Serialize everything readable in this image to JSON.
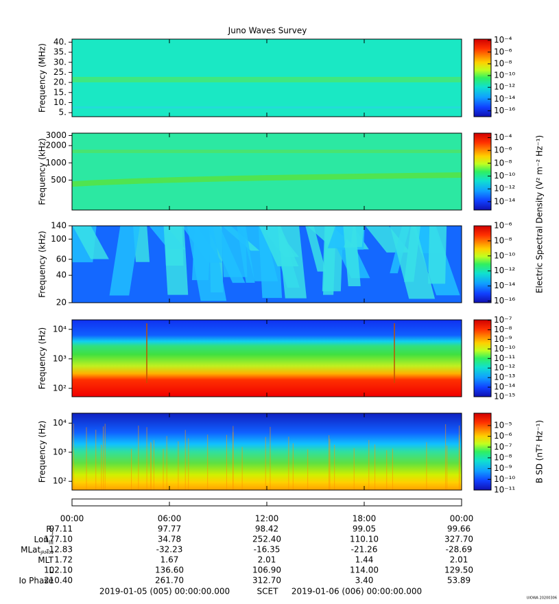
{
  "chart_data": [
    {
      "type": "spectrogram",
      "title": "Juno Waves Survey",
      "ylabel": "Frequency (MHz)",
      "yscale": "linear",
      "ylim": [
        3,
        41.5
      ],
      "yticks": [
        {
          "value": 40,
          "label": "40."
        },
        {
          "value": 35,
          "label": "35."
        },
        {
          "value": 30,
          "label": "30."
        },
        {
          "value": 25,
          "label": "25."
        },
        {
          "value": 20,
          "label": "20."
        },
        {
          "value": 15,
          "label": "15."
        },
        {
          "value": 10,
          "label": "10."
        },
        {
          "value": 5,
          "label": "5."
        }
      ],
      "clim": [
        1e-17,
        0.00016
      ],
      "cticks": [
        {
          "value": 0.0001,
          "label": "10⁻⁴"
        },
        {
          "value": 1e-06,
          "label": "10⁻⁶"
        },
        {
          "value": 1e-08,
          "label": "10⁻⁸"
        },
        {
          "value": 1e-10,
          "label": "10⁻¹⁰"
        },
        {
          "value": 1e-12,
          "label": "10⁻¹²"
        },
        {
          "value": 1e-14,
          "label": "10⁻¹⁴"
        },
        {
          "value": 1e-16,
          "label": "10⁻¹⁶"
        }
      ]
    },
    {
      "type": "spectrogram",
      "ylabel": "Frequency (kHz)",
      "yscale": "log",
      "ylim": [
        150,
        3300
      ],
      "yticks": [
        3000,
        2000,
        1000,
        500
      ],
      "clim": [
        5e-16,
        0.0005
      ],
      "cticks": [
        {
          "value": 0.0001,
          "label": "10⁻⁴"
        },
        {
          "value": 1e-06,
          "label": "10⁻⁶"
        },
        {
          "value": 1e-08,
          "label": "10⁻⁸"
        },
        {
          "value": 1e-10,
          "label": "10⁻¹⁰"
        },
        {
          "value": 1e-12,
          "label": "10⁻¹²"
        },
        {
          "value": 1e-14,
          "label": "10⁻¹⁴"
        }
      ]
    },
    {
      "type": "spectrogram",
      "ylabel": "Frequency (kHz)",
      "yscale": "log",
      "ylim": [
        20,
        140
      ],
      "yticks": [
        140,
        100,
        60,
        40,
        20
      ],
      "clim": [
        6e-17,
        1e-06
      ],
      "clabel": "Electric Spectral Density (V² m⁻² Hz⁻¹)",
      "cticks": [
        {
          "value": 1e-06,
          "label": "10⁻⁶"
        },
        {
          "value": 1e-08,
          "label": "10⁻⁸"
        },
        {
          "value": 1e-10,
          "label": "10⁻¹⁰"
        },
        {
          "value": 1e-12,
          "label": "10⁻¹²"
        },
        {
          "value": 1e-14,
          "label": "10⁻¹⁴"
        },
        {
          "value": 1e-16,
          "label": "10⁻¹⁶"
        }
      ]
    },
    {
      "type": "spectrogram",
      "ylabel": "Frequency (Hz)",
      "yscale": "log",
      "ylim": [
        52,
        21000
      ],
      "yticks": [
        {
          "value": 10000,
          "label": "10⁴"
        },
        {
          "value": 1000,
          "label": "10³"
        },
        {
          "value": 100,
          "label": "10²"
        }
      ],
      "clim": [
        1e-15,
        1.1e-07
      ],
      "cticks": [
        {
          "value": 1e-07,
          "label": "10⁻⁷"
        },
        {
          "value": 1e-08,
          "label": "10⁻⁸"
        },
        {
          "value": 1e-09,
          "label": "10⁻⁹"
        },
        {
          "value": 1e-10,
          "label": "10⁻¹⁰"
        },
        {
          "value": 1e-11,
          "label": "10⁻¹¹"
        },
        {
          "value": 1e-12,
          "label": "10⁻¹²"
        },
        {
          "value": 1e-13,
          "label": "10⁻¹³"
        },
        {
          "value": 1e-14,
          "label": "10⁻¹⁴"
        },
        {
          "value": 1e-15,
          "label": "10⁻¹⁵"
        }
      ]
    },
    {
      "type": "spectrogram",
      "ylabel": "Frequency (Hz)",
      "yscale": "log",
      "ylim": [
        50,
        22000
      ],
      "yticks": [
        {
          "value": 10000,
          "label": "10⁴"
        },
        {
          "value": 1000,
          "label": "10³"
        },
        {
          "value": 100,
          "label": "10²"
        }
      ],
      "clim": [
        1e-11,
        0.00014
      ],
      "clabel": "B SD (nT² Hz⁻¹)",
      "cticks": [
        {
          "value": 1e-05,
          "label": "10⁻⁵"
        },
        {
          "value": 1e-06,
          "label": "10⁻⁶"
        },
        {
          "value": 1e-07,
          "label": "10⁻⁷"
        },
        {
          "value": 1e-08,
          "label": "10⁻⁸"
        },
        {
          "value": 1e-09,
          "label": "10⁻⁹"
        },
        {
          "value": 1e-10,
          "label": "10⁻¹⁰"
        },
        {
          "value": 1e-11,
          "label": "10⁻¹¹"
        }
      ]
    }
  ],
  "time_axis": {
    "xlim": [
      0,
      24
    ],
    "xticks": [
      {
        "value": 0,
        "label": "00:00"
      },
      {
        "value": 6,
        "label": "06:00"
      },
      {
        "value": 12,
        "label": "12:00"
      },
      {
        "value": 18,
        "label": "18:00"
      },
      {
        "value": 24,
        "label": "00:00"
      }
    ]
  },
  "ephemeris": {
    "rows": [
      {
        "label": "R",
        "sub": "J",
        "values": [
          "97.11",
          "97.77",
          "98.42",
          "99.05",
          "99.66"
        ]
      },
      {
        "label": "Lon",
        "sub": "III",
        "values": [
          "177.10",
          "34.78",
          "252.40",
          "110.10",
          "327.70"
        ]
      },
      {
        "label": "MLat",
        "sub": "JRM09",
        "values": [
          "-12.83",
          "-32.23",
          "-16.35",
          "-21.26",
          "-28.69"
        ]
      },
      {
        "label": "MLT",
        "values": [
          "1.72",
          "1.67",
          "2.01",
          "1.44",
          "2.01"
        ]
      },
      {
        "label": "L",
        "values": [
          "102.10",
          "136.60",
          "106.90",
          "114.00",
          "129.50"
        ]
      },
      {
        "label": "Io Phase",
        "values": [
          "210.40",
          "261.70",
          "312.70",
          "3.40",
          "53.89"
        ]
      }
    ]
  },
  "footer": {
    "start": "2019-01-05 (005) 00:00:00.000",
    "frame": "SCET",
    "end": "2019-01-06 (006) 00:00:00.000"
  },
  "stamp": "UIOWA 20200306"
}
